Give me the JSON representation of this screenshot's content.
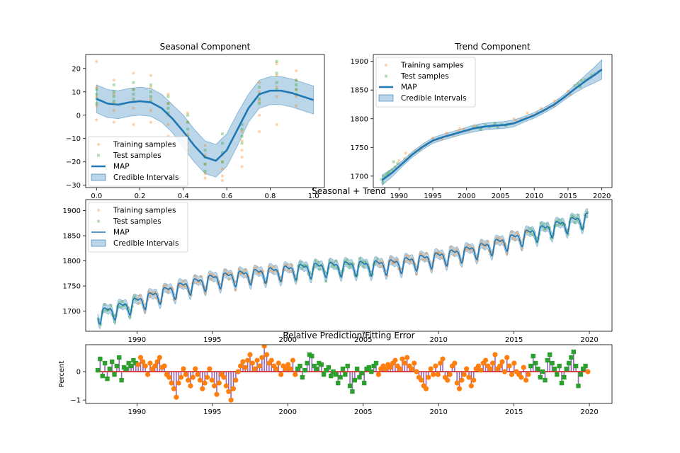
{
  "chart_data": [
    {
      "type": "scatter",
      "title": "Seasonal Component",
      "xlim": [
        -0.05,
        1.05
      ],
      "ylim": [
        -31,
        26
      ],
      "xticks": [
        "0.0",
        "0.2",
        "0.4",
        "0.6",
        "0.8",
        "1.0"
      ],
      "yticks": [
        "-30",
        "-20",
        "-10",
        "0",
        "10",
        "20"
      ],
      "legend": [
        "Training samples",
        "Test samples",
        "MAP",
        "Credible Intervals"
      ],
      "legend_position": "lower-left",
      "map": {
        "x": [
          0.0,
          0.05,
          0.1,
          0.15,
          0.2,
          0.25,
          0.3,
          0.35,
          0.4,
          0.45,
          0.5,
          0.55,
          0.6,
          0.65,
          0.7,
          0.75,
          0.8,
          0.85,
          0.9,
          0.95,
          1.0
        ],
        "y": [
          7,
          5,
          4.5,
          5.5,
          6,
          5.5,
          3,
          -1.5,
          -7,
          -13,
          -18,
          -19.5,
          -15,
          -6,
          3,
          9,
          10.5,
          10.5,
          9.5,
          8,
          6.5
        ],
        "band": [
          6,
          6,
          6,
          6,
          6,
          6,
          6,
          6,
          7,
          7,
          7,
          7,
          7,
          7,
          6,
          6,
          6,
          6,
          6,
          6,
          6
        ]
      },
      "training": {
        "x": [
          0.0,
          0.0,
          0.0,
          0.0,
          0.0,
          0.08,
          0.08,
          0.08,
          0.08,
          0.08,
          0.17,
          0.17,
          0.17,
          0.17,
          0.17,
          0.25,
          0.25,
          0.25,
          0.25,
          0.25,
          0.33,
          0.33,
          0.33,
          0.33,
          0.33,
          0.42,
          0.42,
          0.42,
          0.42,
          0.42,
          0.5,
          0.5,
          0.5,
          0.5,
          0.5,
          0.58,
          0.58,
          0.58,
          0.58,
          0.58,
          0.67,
          0.67,
          0.67,
          0.67,
          0.67,
          0.75,
          0.75,
          0.75,
          0.75,
          0.75,
          0.83,
          0.83,
          0.83,
          0.83,
          0.83,
          0.92,
          0.92,
          0.92,
          0.92,
          0.92
        ],
        "y": [
          23,
          12,
          8,
          4,
          -2,
          15,
          9,
          5,
          2,
          -3,
          18,
          11,
          6,
          3,
          -4,
          17,
          12,
          7,
          2,
          -3,
          9,
          5,
          0,
          -4,
          -9,
          1,
          -3,
          -8,
          -12,
          -15,
          -13,
          -17,
          -21,
          -25,
          -27,
          -17,
          -20,
          -23,
          -26,
          -28,
          -7,
          -11,
          -15,
          -18,
          -22,
          14,
          10,
          6,
          0,
          -7,
          22,
          17,
          12,
          8,
          -4,
          19,
          15,
          11,
          8,
          4
        ]
      },
      "test": {
        "x": [
          0.0,
          0.0,
          0.0,
          0.0,
          0.08,
          0.08,
          0.08,
          0.08,
          0.17,
          0.17,
          0.17,
          0.17,
          0.25,
          0.25,
          0.25,
          0.25,
          0.33,
          0.33,
          0.33,
          0.33,
          0.42,
          0.42,
          0.42,
          0.42,
          0.5,
          0.5,
          0.5,
          0.5,
          0.58,
          0.58,
          0.58,
          0.58,
          0.67,
          0.67,
          0.67,
          0.67,
          0.75,
          0.75,
          0.75,
          0.75,
          0.83,
          0.83,
          0.83,
          0.83,
          0.92,
          0.92,
          0.92,
          0.92
        ],
        "y": [
          11,
          9,
          7,
          5,
          13,
          10,
          8,
          6,
          14,
          11,
          9,
          7,
          13,
          10,
          8,
          6,
          8,
          5,
          3,
          1,
          0,
          -3,
          -6,
          -9,
          -15,
          -18,
          -21,
          -24,
          -8,
          -12,
          -16,
          -20,
          -4,
          -6,
          -9,
          -12,
          12,
          9,
          7,
          5,
          23,
          18,
          14,
          11,
          15,
          13,
          11,
          9
        ]
      }
    },
    {
      "type": "scatter",
      "title": "Trend Component",
      "xlim": [
        1986.2,
        2021.5
      ],
      "ylim": [
        1680,
        1912
      ],
      "xticks": [
        "1990",
        "1995",
        "2000",
        "2005",
        "2010",
        "2015",
        "2020"
      ],
      "yticks": [
        "1700",
        "1750",
        "1800",
        "1850",
        "1900"
      ],
      "legend": [
        "Training samples",
        "Test samples",
        "MAP",
        "Credible Intervals"
      ],
      "legend_position": "top-left",
      "map": {
        "x": [
          1987.5,
          1989,
          1990.5,
          1992,
          1993.5,
          1995,
          1996.5,
          1998,
          1999.5,
          2001,
          2002.5,
          2004,
          2005.5,
          2007,
          2008.5,
          2010,
          2011.5,
          2013,
          2014.5,
          2016,
          2017.5,
          2019,
          2020
        ],
        "y": [
          1693,
          1706,
          1722,
          1738,
          1751,
          1762,
          1768,
          1773,
          1778,
          1783,
          1786,
          1788,
          1789,
          1792,
          1799,
          1806,
          1815,
          1825,
          1838,
          1852,
          1865,
          1877,
          1886
        ],
        "band": [
          9,
          7,
          5,
          5,
          5,
          5,
          5,
          5,
          5,
          6,
          6,
          6,
          6,
          6,
          5,
          5,
          5,
          5,
          5,
          7,
          10,
          14,
          17
        ]
      },
      "training": {
        "x": [
          1990,
          1990.8,
          1991.6,
          1992.4,
          1993.2,
          1994,
          1994.8,
          1995.6,
          1996.4,
          1997.2,
          1998,
          1998.8,
          1999.6,
          2000.4,
          2001.2,
          2006.5,
          2007.3,
          2008.1,
          2008.9,
          2009.7,
          2010.5,
          2011.3,
          2012.1,
          2012.9,
          2013.7,
          2014.5,
          2015.3,
          1991,
          1993,
          1995,
          1997,
          1999,
          2007,
          2009,
          2011,
          2013,
          2015
        ],
        "y": [
          1727,
          1731,
          1736,
          1744,
          1749,
          1754,
          1760,
          1763,
          1764,
          1770,
          1771,
          1779,
          1782,
          1780,
          1787,
          1791,
          1796,
          1799,
          1802,
          1806,
          1811,
          1814,
          1820,
          1822,
          1832,
          1838,
          1842,
          1740,
          1745,
          1766,
          1775,
          1783,
          1800,
          1810,
          1818,
          1831,
          1848
        ]
      },
      "test": {
        "x": [
          1987.4,
          1987.8,
          1988.2,
          1988.6,
          1989,
          1989.4,
          1989.8,
          1987.6,
          1988.4,
          1989.2,
          2001,
          2001.6,
          2002.2,
          2002.8,
          2003.4,
          2004,
          2004.6,
          2005.2,
          2005.8,
          2002,
          2004.2,
          2006,
          2016,
          2016.5,
          2017,
          2017.5,
          2018,
          2018.5,
          2019,
          2019.5,
          2016.8,
          2018.3
        ],
        "y": [
          1694,
          1700,
          1703,
          1708,
          1711,
          1716,
          1722,
          1689,
          1705,
          1725,
          1784,
          1786,
          1784,
          1789,
          1786,
          1788,
          1785,
          1790,
          1788,
          1782,
          1792,
          1790,
          1858,
          1861,
          1866,
          1868,
          1870,
          1876,
          1878,
          1882,
          1856,
          1872
        ]
      }
    },
    {
      "type": "line",
      "title": "Seasonal + Trend",
      "xlim": [
        1986.6,
        2021.5
      ],
      "ylim": [
        1660,
        1922
      ],
      "xticks": [
        "1990",
        "1995",
        "2000",
        "2005",
        "2010",
        "2015",
        "2020"
      ],
      "yticks": [
        "1700",
        "1750",
        "1800",
        "1850",
        "1900"
      ],
      "legend": [
        "Training samples",
        "Test samples",
        "MAP",
        "Credible Intervals"
      ],
      "legend_position": "top-left",
      "x_start": 1987.4,
      "x_end": 2019.9,
      "trend": {
        "x": [
          1987.5,
          1989,
          1990.5,
          1992,
          1993.5,
          1995,
          1996.5,
          1998,
          1999.5,
          2001,
          2002.5,
          2004,
          2005.5,
          2007,
          2008.5,
          2010,
          2011.5,
          2013,
          2014.5,
          2016,
          2017.5,
          2019,
          2020
        ],
        "y": [
          1693,
          1706,
          1722,
          1738,
          1751,
          1762,
          1768,
          1773,
          1778,
          1783,
          1786,
          1788,
          1789,
          1792,
          1799,
          1806,
          1815,
          1825,
          1838,
          1852,
          1865,
          1877,
          1886
        ]
      },
      "seasonal": {
        "phase": [
          0.0,
          0.05,
          0.1,
          0.15,
          0.2,
          0.25,
          0.3,
          0.35,
          0.4,
          0.45,
          0.5,
          0.55,
          0.6,
          0.65,
          0.7,
          0.75,
          0.8,
          0.85,
          0.9,
          0.95,
          1.0
        ],
        "y": [
          7,
          5,
          4.5,
          5.5,
          6,
          5.5,
          3,
          -1.5,
          -7,
          -13,
          -18,
          -19.5,
          -15,
          -6,
          3,
          9,
          10.5,
          10.5,
          9.5,
          8,
          6.5
        ]
      },
      "band_width": 9,
      "training_range": [
        1990,
        2016
      ],
      "test_ranges": [
        [
          1987.4,
          1990
        ],
        [
          2000.5,
          2006
        ],
        [
          2016,
          2019.9
        ]
      ]
    },
    {
      "type": "bar",
      "title": "Relative Prediction/Fitting Error",
      "ylabel": "Percent",
      "xlim": [
        1986.6,
        2021.5
      ],
      "ylim": [
        -1.12,
        0.95
      ],
      "xticks": [
        "1990",
        "1995",
        "2000",
        "2005",
        "2010",
        "2015",
        "2020"
      ],
      "yticks": [
        "-1",
        "0"
      ],
      "x_start": 1987.4,
      "x_end": 2019.9,
      "values": [
        0.05,
        0.45,
        -0.15,
        0.3,
        -0.25,
        0.1,
        0.35,
        -0.1,
        0.2,
        0.5,
        -0.3,
        0.15,
        0.1,
        0.3,
        0.2,
        0.4,
        0.3,
        0.25,
        0.5,
        0.35,
        0.2,
        -0.1,
        0.3,
        0.1,
        0.2,
        0.35,
        0.5,
        0.15,
        0.2,
        -0.1,
        -0.2,
        -0.4,
        -0.6,
        -0.9,
        -0.4,
        -0.2,
        0.1,
        -0.1,
        -0.3,
        -0.5,
        -0.2,
        0.1,
        -0.1,
        -0.3,
        -0.6,
        -0.4,
        -0.2,
        0.1,
        -0.3,
        -0.5,
        -0.8,
        -0.4,
        -0.1,
        -0.2,
        -0.5,
        -0.7,
        -1.0,
        -0.6,
        -0.3,
        0.0,
        0.2,
        0.35,
        0.15,
        0.4,
        0.6,
        0.3,
        0.1,
        0.4,
        0.2,
        0.5,
        0.9,
        0.6,
        0.3,
        0.4,
        0.2,
        0.1,
        0.3,
        -0.1,
        0.2,
        0.1,
        0.25,
        0.1,
        0.4,
        -0.1,
        0.1,
        0.2,
        -0.2,
        0.05,
        0.3,
        0.6,
        0.55,
        0.2,
        0.1,
        0.3,
        0.25,
        -0.1,
        0.05,
        0.15,
        -0.15,
        0.0,
        -0.1,
        -0.4,
        -0.2,
        0.1,
        -0.1,
        0.2,
        -0.5,
        -0.7,
        -0.3,
        0.1,
        -0.2,
        -0.05,
        -0.4,
        0.1,
        0.15,
        0.0,
        0.2,
        0.3,
        -0.1,
        0.1,
        0.2,
        0.1,
        0.25,
        0.15,
        0.3,
        0.4,
        0.2,
        0.1,
        0.45,
        0.3,
        0.5,
        0.2,
        0.1,
        0.3,
        0.0,
        -0.2,
        -0.3,
        -0.5,
        -0.6,
        -0.2,
        0.1,
        -0.1,
        0.2,
        -0.1,
        0.3,
        0.45,
        -0.2,
        -0.3,
        -0.1,
        0.2,
        0.3,
        -0.4,
        -0.6,
        -0.3,
        -0.1,
        0.1,
        -0.2,
        -0.5,
        -0.3,
        0.1,
        0.2,
        0.05,
        0.3,
        0.4,
        0.2,
        0.1,
        0.3,
        0.6,
        0.1,
        0.2,
        0.35,
        0.0,
        0.5,
        0.2,
        -0.1,
        0.3,
        0.0,
        -0.1,
        -0.2,
        0.15,
        -0.3,
        -0.1,
        0.2,
        0.55,
        0.3,
        0.1,
        -0.2,
        0.0,
        -0.3,
        0.4,
        0.6,
        0.3,
        0.1,
        -0.1,
        0.2,
        -0.4,
        -0.2,
        0.1,
        0.3,
        0.5,
        0.7,
        0.2,
        -0.5,
        -0.1,
        0.1,
        0.2,
        0.0
      ]
    }
  ]
}
